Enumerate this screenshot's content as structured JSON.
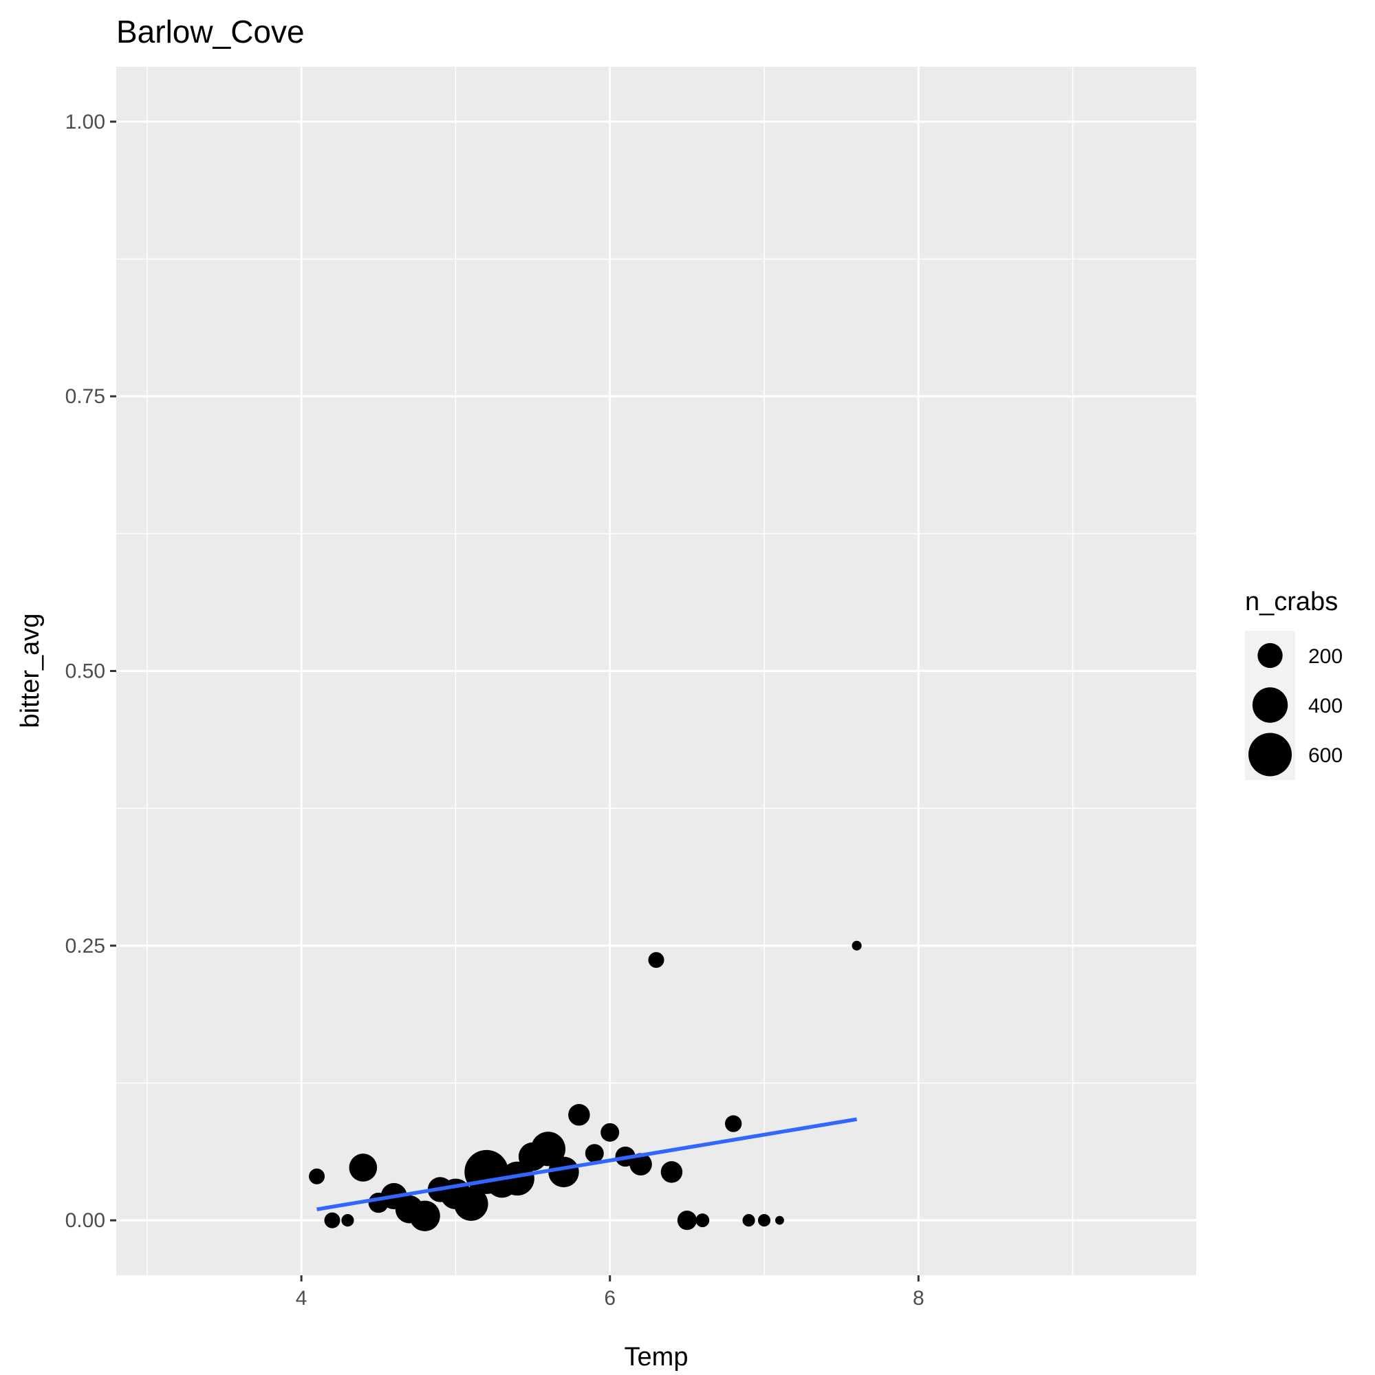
{
  "chart_data": {
    "type": "scatter",
    "title": "Barlow_Cove",
    "xlabel": "Temp",
    "ylabel": "bitter_avg",
    "xlim": [
      2.8,
      9.8
    ],
    "ylim": [
      -0.05,
      1.05
    ],
    "x_ticks": [
      4,
      6,
      8
    ],
    "x_tick_labels": [
      "4",
      "6",
      "8"
    ],
    "x_minor_ticks": [
      3,
      5,
      7,
      9
    ],
    "y_ticks": [
      0,
      0.25,
      0.5,
      0.75,
      1.0
    ],
    "y_tick_labels": [
      "0.00",
      "0.25",
      "0.50",
      "0.75",
      "1.00"
    ],
    "y_minor_ticks": [
      0.125,
      0.375,
      0.625,
      0.875
    ],
    "grid": true,
    "background": "#ebebeb",
    "point_color": "#000000",
    "size_variable": "n_crabs",
    "size_range": [
      0,
      700
    ],
    "legend": {
      "title": "n_crabs",
      "position": "right",
      "entries": [
        {
          "label": "200",
          "value": 200
        },
        {
          "label": "400",
          "value": 400
        },
        {
          "label": "600",
          "value": 600
        }
      ]
    },
    "points": [
      {
        "x": 4.1,
        "y": 0.04,
        "n": 80
      },
      {
        "x": 4.2,
        "y": 0.0,
        "n": 80
      },
      {
        "x": 4.3,
        "y": 0.0,
        "n": 50
      },
      {
        "x": 4.4,
        "y": 0.048,
        "n": 250
      },
      {
        "x": 4.5,
        "y": 0.016,
        "n": 130
      },
      {
        "x": 4.6,
        "y": 0.022,
        "n": 220
      },
      {
        "x": 4.7,
        "y": 0.01,
        "n": 250
      },
      {
        "x": 4.8,
        "y": 0.004,
        "n": 300
      },
      {
        "x": 4.9,
        "y": 0.028,
        "n": 200
      },
      {
        "x": 5.0,
        "y": 0.024,
        "n": 300
      },
      {
        "x": 5.1,
        "y": 0.015,
        "n": 370
      },
      {
        "x": 5.2,
        "y": 0.044,
        "n": 620
      },
      {
        "x": 5.3,
        "y": 0.035,
        "n": 320
      },
      {
        "x": 5.4,
        "y": 0.038,
        "n": 370
      },
      {
        "x": 5.5,
        "y": 0.058,
        "n": 260
      },
      {
        "x": 5.6,
        "y": 0.065,
        "n": 380
      },
      {
        "x": 5.7,
        "y": 0.044,
        "n": 300
      },
      {
        "x": 5.8,
        "y": 0.096,
        "n": 150
      },
      {
        "x": 5.9,
        "y": 0.061,
        "n": 110
      },
      {
        "x": 6.0,
        "y": 0.08,
        "n": 110
      },
      {
        "x": 6.1,
        "y": 0.058,
        "n": 130
      },
      {
        "x": 6.2,
        "y": 0.051,
        "n": 160
      },
      {
        "x": 6.3,
        "y": 0.237,
        "n": 80
      },
      {
        "x": 6.4,
        "y": 0.044,
        "n": 150
      },
      {
        "x": 6.5,
        "y": 0.0,
        "n": 120
      },
      {
        "x": 6.6,
        "y": 0.0,
        "n": 60
      },
      {
        "x": 6.8,
        "y": 0.088,
        "n": 90
      },
      {
        "x": 6.9,
        "y": 0.0,
        "n": 50
      },
      {
        "x": 7.0,
        "y": 0.0,
        "n": 50
      },
      {
        "x": 7.1,
        "y": 0.0,
        "n": 25
      },
      {
        "x": 7.6,
        "y": 0.25,
        "n": 30
      }
    ],
    "trend_line": {
      "method": "lm",
      "color": "#3366ff",
      "x": [
        4.1,
        7.6
      ],
      "y": [
        0.01,
        0.092
      ]
    }
  }
}
